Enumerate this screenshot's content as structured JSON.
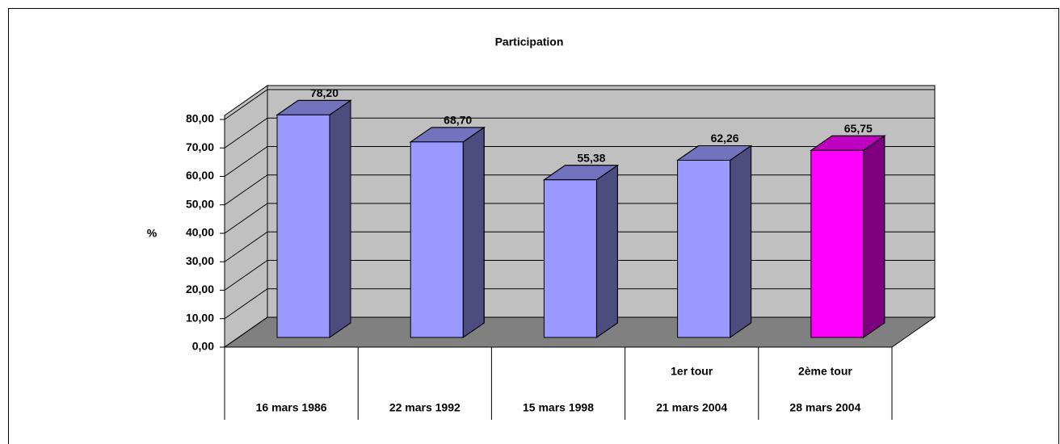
{
  "chart_data": {
    "type": "bar3d",
    "title": "Participation",
    "y_label": "%",
    "categories": [
      "16 mars 1986",
      "22 mars 1992",
      "15 mars 1998",
      "21 mars 2004",
      "28 mars 2004"
    ],
    "category_headers": [
      null,
      null,
      null,
      "1er tour",
      "2ème tour"
    ],
    "values": [
      78.2,
      68.7,
      55.38,
      62.26,
      65.75
    ],
    "value_labels": [
      "78,20",
      "68,70",
      "55,38",
      "62,26",
      "65,75"
    ],
    "colors": [
      "#9999ff",
      "#9999ff",
      "#9999ff",
      "#9999ff",
      "#ff00ff"
    ],
    "ylim": [
      0,
      80
    ],
    "yticks": [
      {
        "value": 0,
        "label": "0,00"
      },
      {
        "value": 10,
        "label": "10,00"
      },
      {
        "value": 20,
        "label": "20,00"
      },
      {
        "value": 30,
        "label": "30,00"
      },
      {
        "value": 40,
        "label": "40,00"
      },
      {
        "value": 50,
        "label": "50,00"
      },
      {
        "value": 60,
        "label": "60,00"
      },
      {
        "value": 70,
        "label": "70,00"
      },
      {
        "value": 80,
        "label": "80,00"
      }
    ],
    "grid": true
  }
}
